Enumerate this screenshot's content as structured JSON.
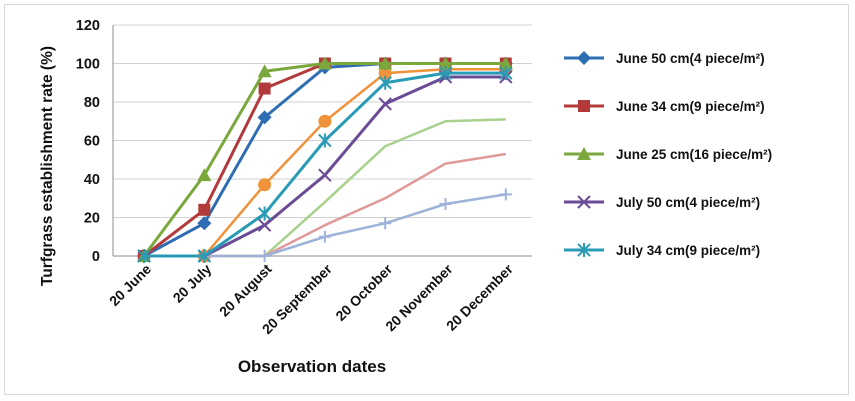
{
  "chart_data": {
    "type": "line",
    "xlabel": "Observation dates",
    "ylabel": "Turfgrass establishment rate (%)",
    "ylim": [
      0,
      120
    ],
    "yticks": [
      0,
      20,
      40,
      60,
      80,
      100,
      120
    ],
    "categories": [
      "20 June",
      "20 July",
      "20 August",
      "20 September",
      "20 October",
      "20 November",
      "20 December"
    ],
    "grid": "horizontal",
    "legend_placement": "right",
    "series": [
      {
        "name": "June 50 cm(4 piece/m²)",
        "color": "#2e6db4",
        "marker": "diamond",
        "in_legend": true,
        "values": [
          0,
          17,
          72,
          98,
          100,
          100,
          100
        ]
      },
      {
        "name": "June 34 cm(9 piece/m²)",
        "color": "#b33a3a",
        "marker": "square",
        "in_legend": true,
        "values": [
          0,
          24,
          87,
          100,
          100,
          100,
          100
        ]
      },
      {
        "name": "June 25 cm(16 piece/m²)",
        "color": "#7aa83c",
        "marker": "triangle",
        "in_legend": true,
        "values": [
          0,
          42,
          96,
          100,
          100,
          100,
          100
        ]
      },
      {
        "name": "July 50 cm(4 piece/m²)",
        "color": "#6a4b95",
        "marker": "x",
        "in_legend": true,
        "values": [
          0,
          0,
          16,
          42,
          79,
          93,
          93
        ]
      },
      {
        "name": "July 34 cm(9 piece/m²)",
        "color": "#2a9bb5",
        "marker": "star",
        "in_legend": true,
        "values": [
          0,
          0,
          22,
          60,
          90,
          95,
          95
        ]
      },
      {
        "name": "",
        "color": "#f0923a",
        "marker": "circle",
        "in_legend": false,
        "values": [
          0,
          0,
          37,
          70,
          95,
          97,
          97
        ]
      },
      {
        "name": "",
        "color": "#a9d18e",
        "marker": "none",
        "in_legend": false,
        "values": [
          0,
          0,
          0,
          28,
          57,
          70,
          71
        ]
      },
      {
        "name": "",
        "color": "#e09a9a",
        "marker": "none",
        "in_legend": false,
        "values": [
          0,
          0,
          0,
          16,
          30,
          48,
          53
        ]
      },
      {
        "name": "",
        "color": "#9db2d9",
        "marker": "plus",
        "in_legend": false,
        "values": [
          0,
          0,
          0,
          10,
          17,
          27,
          32
        ]
      }
    ]
  }
}
